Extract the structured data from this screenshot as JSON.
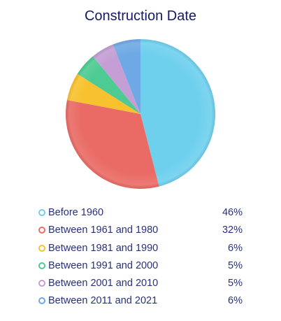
{
  "chart_data": {
    "type": "pie",
    "title": "Construction Date",
    "slices": [
      {
        "label": "Before 1960",
        "value": 46,
        "display": "46%",
        "color": "#6fd0ee"
      },
      {
        "label": "Between 1961 and 1980",
        "value": 32,
        "display": "32%",
        "color": "#ea6b65"
      },
      {
        "label": "Between 1981 and 1990",
        "value": 6,
        "display": "6%",
        "color": "#f8c22e"
      },
      {
        "label": "Between 1991 and 2000",
        "value": 5,
        "display": "5%",
        "color": "#4ecb92"
      },
      {
        "label": "Between 2001 and 2010",
        "value": 5,
        "display": "5%",
        "color": "#c49ed4"
      },
      {
        "label": "Between 2011 and 2021",
        "value": 6,
        "display": "6%",
        "color": "#6ea9e5"
      }
    ],
    "legend_position": "bottom"
  }
}
